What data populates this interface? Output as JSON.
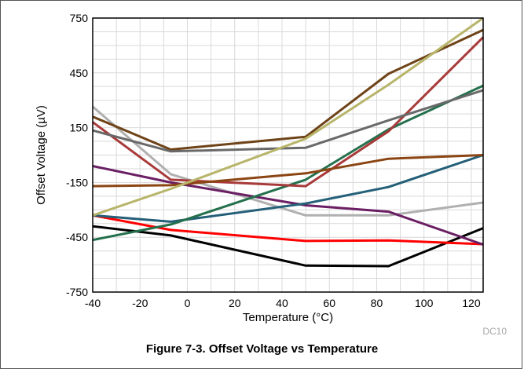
{
  "figure": {
    "caption": "Figure 7-3. Offset Voltage vs Temperature",
    "code": "DC10"
  },
  "chart_data": {
    "type": "line",
    "title": "",
    "xlabel": "Temperature (°C)",
    "ylabel": "Offset Voltage (µV)",
    "xlim": [
      -40,
      125
    ],
    "ylim": [
      -750,
      750
    ],
    "xticks": [
      -40,
      -20,
      0,
      20,
      40,
      60,
      80,
      100,
      120
    ],
    "xtick_labels": [
      "-40",
      "-20",
      "0",
      "20",
      "40",
      "60",
      "80",
      "100",
      "120"
    ],
    "yticks": [
      750,
      450,
      150,
      -150,
      -450,
      -750
    ],
    "ytick_labels": [
      "750",
      "450",
      "150",
      "-150",
      "-450",
      "-750"
    ],
    "grid": true,
    "legend": "none",
    "series": [
      {
        "color": "#000000",
        "points": [
          [
            -40,
            -390
          ],
          [
            -7,
            -440
          ],
          [
            50,
            -605
          ],
          [
            85,
            -608
          ],
          [
            125,
            -400
          ]
        ]
      },
      {
        "color": "#ff0000",
        "points": [
          [
            -40,
            -330
          ],
          [
            -7,
            -410
          ],
          [
            50,
            -470
          ],
          [
            85,
            -467
          ],
          [
            125,
            -488
          ]
        ]
      },
      {
        "color": "#b0b0b0",
        "points": [
          [
            -40,
            265
          ],
          [
            -7,
            -105
          ],
          [
            50,
            -330
          ],
          [
            85,
            -330
          ],
          [
            125,
            -260
          ]
        ]
      },
      {
        "color": "#6a1e63",
        "points": [
          [
            -40,
            -60
          ],
          [
            -7,
            -150
          ],
          [
            50,
            -275
          ],
          [
            85,
            -310
          ],
          [
            125,
            -490
          ]
        ]
      },
      {
        "color": "#245f78",
        "points": [
          [
            -40,
            -330
          ],
          [
            -7,
            -365
          ],
          [
            50,
            -265
          ],
          [
            85,
            -175
          ],
          [
            125,
            0
          ]
        ]
      },
      {
        "color": "#24704d",
        "points": [
          [
            -40,
            -465
          ],
          [
            -7,
            -380
          ],
          [
            50,
            -135
          ],
          [
            85,
            140
          ],
          [
            125,
            380
          ]
        ]
      },
      {
        "color": "#a83a3a",
        "points": [
          [
            -40,
            180
          ],
          [
            -7,
            -135
          ],
          [
            50,
            -170
          ],
          [
            85,
            130
          ],
          [
            125,
            645
          ]
        ]
      },
      {
        "color": "#8b4513",
        "points": [
          [
            -40,
            -170
          ],
          [
            -7,
            -165
          ],
          [
            50,
            -100
          ],
          [
            85,
            -20
          ],
          [
            125,
            0
          ]
        ]
      },
      {
        "color": "#6e4318",
        "points": [
          [
            -40,
            210
          ],
          [
            -7,
            30
          ],
          [
            50,
            100
          ],
          [
            85,
            445
          ],
          [
            125,
            685
          ]
        ]
      },
      {
        "color": "#696969",
        "points": [
          [
            -40,
            135
          ],
          [
            -7,
            20
          ],
          [
            50,
            40
          ],
          [
            85,
            190
          ],
          [
            125,
            355
          ]
        ]
      },
      {
        "color": "#b8b56a",
        "points": [
          [
            -40,
            -330
          ],
          [
            -7,
            -185
          ],
          [
            50,
            90
          ],
          [
            85,
            385
          ],
          [
            125,
            750
          ]
        ]
      }
    ]
  }
}
